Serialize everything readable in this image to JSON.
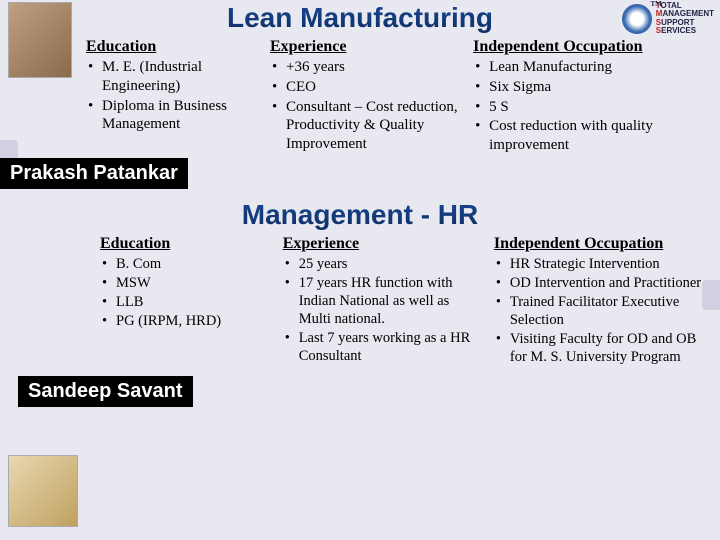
{
  "logo": {
    "l1_letter": "T",
    "l1_rest": "OTAL",
    "l2_letter": "M",
    "l2_rest": "ANAGEMENT",
    "l3_letter": "S",
    "l3_rest": "UPPORT",
    "l4_letter": "S",
    "l4_rest": "ERVICES"
  },
  "profiles": [
    {
      "title": "Lean Manufacturing",
      "name": "Prakash  Patankar",
      "columns": [
        {
          "heading": "Education",
          "items": [
            "M. E. (Industrial Engineering)",
            "Diploma in Business Management"
          ]
        },
        {
          "heading": "Experience",
          "items": [
            "+36 years",
            "CEO",
            "Consultant – Cost reduction, Productivity & Quality Improvement"
          ]
        },
        {
          "heading": "Independent Occupation",
          "items": [
            "Lean Manufacturing",
            "Six Sigma",
            "5 S",
            "Cost reduction with quality improvement"
          ]
        }
      ]
    },
    {
      "title": "Management  - HR",
      "name": "Sandeep Savant",
      "columns": [
        {
          "heading": "Education",
          "items": [
            "B. Com",
            "MSW",
            "LLB",
            "PG (IRPM, HRD)"
          ]
        },
        {
          "heading": "Experience",
          "items": [
            "25 years",
            "17 years HR function with Indian National as well as  Multi national.",
            "Last 7 years working as a HR Consultant"
          ]
        },
        {
          "heading": "Independent Occupation",
          "items": [
            "HR Strategic Intervention",
            "OD Intervention and Practitioner",
            "Trained Facilitator Executive Selection",
            "Visiting Faculty for OD and OB for M. S. University Program"
          ]
        }
      ]
    }
  ]
}
